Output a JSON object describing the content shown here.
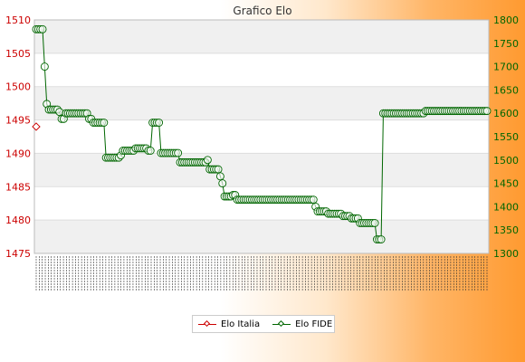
{
  "chart_data": {
    "type": "line",
    "title": "Grafico Elo",
    "xlabel": "",
    "ylabel_left": "",
    "ylabel_right": "",
    "y_left": {
      "min": 1475,
      "max": 1510,
      "step": 5,
      "ticks": [
        "1475",
        "1480",
        "1485",
        "1490",
        "1495",
        "1500",
        "1505",
        "1510"
      ]
    },
    "y_right": {
      "min": 1300,
      "max": 1800,
      "step": 50,
      "ticks": [
        "1300",
        "1350",
        "1400",
        "1450",
        "1500",
        "1550",
        "1600",
        "1650",
        "1700",
        "1750",
        "1800"
      ]
    },
    "grid": true,
    "legend_position": "bottom-center",
    "series": [
      {
        "name": "Elo Italia",
        "axis": "left",
        "color": "#cc0000",
        "values": [
          1494
        ]
      },
      {
        "name": "Elo FIDE",
        "axis": "right",
        "color": "#006600",
        "values": [
          1780,
          1780,
          1780,
          1780,
          1700,
          1620,
          1608,
          1608,
          1608,
          1608,
          1608,
          1603,
          1588,
          1588,
          1600,
          1600,
          1600,
          1600,
          1600,
          1600,
          1600,
          1600,
          1600,
          1600,
          1600,
          1588,
          1588,
          1580,
          1580,
          1580,
          1580,
          1580,
          1580,
          1505,
          1505,
          1505,
          1505,
          1505,
          1505,
          1505,
          1510,
          1520,
          1520,
          1520,
          1520,
          1520,
          1520,
          1525,
          1525,
          1525,
          1525,
          1525,
          1525,
          1520,
          1520,
          1580,
          1580,
          1580,
          1580,
          1515,
          1515,
          1515,
          1515,
          1515,
          1515,
          1515,
          1515,
          1515,
          1495,
          1495,
          1495,
          1495,
          1495,
          1495,
          1495,
          1495,
          1495,
          1495,
          1495,
          1495,
          1495,
          1500,
          1480,
          1480,
          1480,
          1480,
          1480,
          1465,
          1450,
          1422,
          1422,
          1422,
          1422,
          1425,
          1425,
          1415,
          1415,
          1415,
          1415,
          1415,
          1415,
          1415,
          1415,
          1415,
          1415,
          1415,
          1415,
          1415,
          1415,
          1415,
          1415,
          1415,
          1415,
          1415,
          1415,
          1415,
          1415,
          1415,
          1415,
          1415,
          1415,
          1415,
          1415,
          1415,
          1415,
          1415,
          1415,
          1415,
          1415,
          1415,
          1415,
          1415,
          1400,
          1390,
          1390,
          1390,
          1390,
          1390,
          1385,
          1385,
          1385,
          1385,
          1385,
          1385,
          1385,
          1380,
          1380,
          1380,
          1380,
          1375,
          1375,
          1375,
          1375,
          1365,
          1365,
          1365,
          1365,
          1365,
          1365,
          1365,
          1365,
          1330,
          1330,
          1330,
          1600,
          1600,
          1600,
          1600,
          1600,
          1600,
          1600,
          1600,
          1600,
          1600,
          1600,
          1600,
          1600,
          1600,
          1600,
          1600,
          1600,
          1600,
          1600,
          1600,
          1605,
          1605,
          1605,
          1605,
          1605,
          1605,
          1605,
          1605,
          1605,
          1605,
          1605,
          1605,
          1605,
          1605,
          1605,
          1605,
          1605,
          1605,
          1605,
          1605,
          1605,
          1605,
          1605,
          1605,
          1605,
          1605,
          1605,
          1605,
          1605,
          1605
        ]
      }
    ],
    "x_tick_count": 150
  },
  "legend": {
    "items": [
      {
        "label": "Elo Italia",
        "color": "#cc0000"
      },
      {
        "label": "Elo FIDE",
        "color": "#006600"
      }
    ]
  }
}
